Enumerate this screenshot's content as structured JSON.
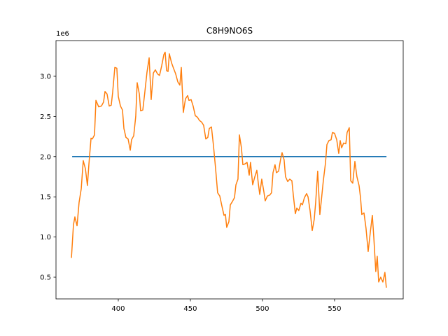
{
  "chart_data": {
    "type": "line",
    "title": "C8H9NO6S",
    "y_offset_label": "1e6",
    "xlim": [
      356.8,
      597.6
    ],
    "xticks": [
      400,
      450,
      500,
      550
    ],
    "ylim": [
      230000,
      3444000
    ],
    "yticks": [
      {
        "value": 500000,
        "label": "0.5"
      },
      {
        "value": 1000000,
        "label": "1.0"
      },
      {
        "value": 1500000,
        "label": "1.5"
      },
      {
        "value": 2000000,
        "label": "2.0"
      },
      {
        "value": 2500000,
        "label": "2.5"
      },
      {
        "value": 3000000,
        "label": "3.0"
      }
    ],
    "grid": false,
    "series": [
      {
        "color": "#1f77b4",
        "x": [
          368,
          586
        ],
        "values": [
          2000000,
          2000000
        ]
      },
      {
        "color": "#ff7f0e",
        "x": [
          367.5,
          368.9,
          369.9,
          371.4,
          372.8,
          374.3,
          375.7,
          377.2,
          378.6,
          379.6,
          381.1,
          382.0,
          383.5,
          384.5,
          386.4,
          388.3,
          389.8,
          390.8,
          392.2,
          393.7,
          395.1,
          396.1,
          397.6,
          399.0,
          400.0,
          401.5,
          402.9,
          403.9,
          405.3,
          406.8,
          408.3,
          409.2,
          410.7,
          412.1,
          413.1,
          414.6,
          415.5,
          417.0,
          418.4,
          419.9,
          421.4,
          422.8,
          424.3,
          425.7,
          427.2,
          428.6,
          430.1,
          431.6,
          432.5,
          433.5,
          434.5,
          435.4,
          436.9,
          438.3,
          439.8,
          441.3,
          442.7,
          443.7,
          445.1,
          446.6,
          448.1,
          449.0,
          450.5,
          451.9,
          453.4,
          454.9,
          456.3,
          457.8,
          459.2,
          460.7,
          462.1,
          463.1,
          464.6,
          466.0,
          467.5,
          468.9,
          470.4,
          471.8,
          473.3,
          474.3,
          475.2,
          476.7,
          477.7,
          479.1,
          480.6,
          481.6,
          483.0,
          484.0,
          485.4,
          486.4,
          487.9,
          489.3,
          490.8,
          491.7,
          493.2,
          494.7,
          496.1,
          497.1,
          498.1,
          499.5,
          501.0,
          501.9,
          503.4,
          504.9,
          506.3,
          507.3,
          508.7,
          509.7,
          511.2,
          512.6,
          513.6,
          515.0,
          516.0,
          517.5,
          518.9,
          520.4,
          521.4,
          522.8,
          523.8,
          525.2,
          526.7,
          527.7,
          529.1,
          530.6,
          531.6,
          533.0,
          534.5,
          535.9,
          536.9,
          538.3,
          539.8,
          540.8,
          542.2,
          543.7,
          544.7,
          546.1,
          547.6,
          548.5,
          550.0,
          551.5,
          552.9,
          553.9,
          554.9,
          556.3,
          557.8,
          558.7,
          560.2,
          561.2,
          562.6,
          564.1,
          565.5,
          567.0,
          568.0,
          568.9,
          570.4,
          571.8,
          573.3,
          574.8,
          576.2,
          577.2,
          578.6,
          579.6,
          580.6,
          582.0,
          583.5,
          584.9,
          585.9
        ],
        "values": [
          740000,
          1150000,
          1250000,
          1140000,
          1430000,
          1600000,
          1950000,
          1850000,
          1640000,
          1900000,
          2230000,
          2220000,
          2270000,
          2700000,
          2620000,
          2630000,
          2680000,
          2810000,
          2780000,
          2630000,
          2640000,
          2800000,
          3110000,
          3100000,
          2750000,
          2630000,
          2580000,
          2350000,
          2240000,
          2220000,
          2080000,
          2210000,
          2260000,
          2500000,
          2920000,
          2780000,
          2570000,
          2580000,
          2800000,
          3050000,
          3230000,
          2710000,
          3040000,
          3080000,
          3030000,
          3010000,
          3130000,
          3270000,
          3300000,
          3070000,
          3060000,
          3280000,
          3170000,
          3100000,
          3030000,
          2930000,
          2890000,
          3110000,
          2550000,
          2720000,
          2760000,
          2700000,
          2710000,
          2630000,
          2510000,
          2490000,
          2450000,
          2430000,
          2390000,
          2220000,
          2240000,
          2350000,
          2370000,
          2140000,
          1850000,
          1550000,
          1510000,
          1390000,
          1270000,
          1280000,
          1120000,
          1190000,
          1400000,
          1440000,
          1490000,
          1650000,
          1720000,
          2270000,
          2110000,
          1900000,
          1910000,
          1930000,
          1770000,
          1930000,
          1650000,
          1750000,
          1830000,
          1670000,
          1530000,
          1720000,
          1560000,
          1450000,
          1510000,
          1520000,
          1550000,
          1800000,
          1900000,
          1800000,
          1820000,
          1970000,
          2050000,
          1960000,
          1750000,
          1690000,
          1720000,
          1700000,
          1520000,
          1290000,
          1360000,
          1330000,
          1420000,
          1400000,
          1490000,
          1540000,
          1500000,
          1330000,
          1080000,
          1220000,
          1430000,
          1820000,
          1280000,
          1450000,
          1700000,
          1920000,
          2150000,
          2200000,
          2210000,
          2300000,
          2290000,
          2210000,
          2040000,
          2200000,
          2110000,
          2170000,
          2160000,
          2300000,
          2360000,
          1700000,
          1670000,
          1940000,
          1750000,
          1640000,
          1490000,
          1280000,
          1300000,
          1110000,
          820000,
          1060000,
          1270000,
          1000000,
          570000,
          760000,
          440000,
          500000,
          440000,
          560000,
          370000
        ]
      }
    ]
  }
}
